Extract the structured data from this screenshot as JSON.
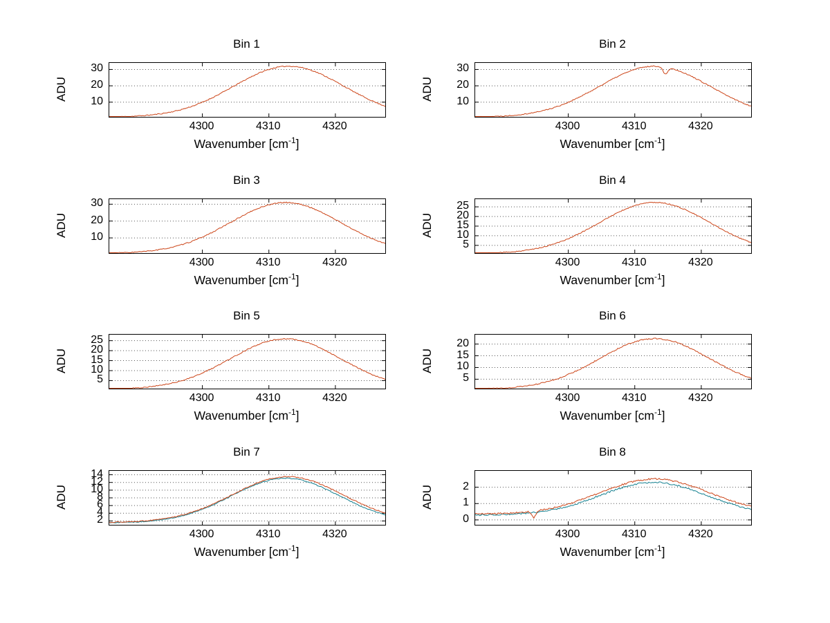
{
  "page": {
    "background": "#ffffff"
  },
  "chart_data": [
    {
      "type": "line",
      "title": "Bin 1",
      "xlabel": "Wavenumber [cm^{-1}]",
      "ylabel": "ADU",
      "xlim": [
        4286,
        4327.5
      ],
      "ylim": [
        1,
        34
      ],
      "xticks": [
        4300,
        4310,
        4320
      ],
      "yticks": [
        10,
        20,
        30
      ],
      "grid": "horizontal-dotted",
      "legend": "none",
      "series": [
        {
          "name": "spectrum",
          "color": "#cc4417",
          "base": 0.8,
          "amp": 31.2,
          "center": 4313,
          "sigma": 8.3,
          "noise": 0.3,
          "seed": 11,
          "dips": []
        }
      ]
    },
    {
      "type": "line",
      "title": "Bin 2",
      "xlabel": "Wavenumber [cm^{-1}]",
      "ylabel": "ADU",
      "xlim": [
        4286,
        4327.5
      ],
      "ylim": [
        1,
        34
      ],
      "xticks": [
        4300,
        4310,
        4320
      ],
      "yticks": [
        10,
        20,
        30
      ],
      "grid": "horizontal-dotted",
      "legend": "none",
      "series": [
        {
          "name": "spectrum",
          "color": "#cc4417",
          "base": 0.8,
          "amp": 31.2,
          "center": 4313,
          "sigma": 8.3,
          "noise": 0.3,
          "seed": 22,
          "dips": [
            {
              "x": 4314.6,
              "depth": 4.2,
              "width": 0.35
            }
          ]
        }
      ]
    },
    {
      "type": "line",
      "title": "Bin 3",
      "xlabel": "Wavenumber [cm^{-1}]",
      "ylabel": "ADU",
      "xlim": [
        4286,
        4327.5
      ],
      "ylim": [
        1,
        33
      ],
      "xticks": [
        4300,
        4310,
        4320
      ],
      "yticks": [
        10,
        20,
        30
      ],
      "grid": "horizontal-dotted",
      "legend": "none",
      "series": [
        {
          "name": "spectrum",
          "color": "#cc4417",
          "base": 0.8,
          "amp": 30.2,
          "center": 4312.5,
          "sigma": 8.3,
          "noise": 0.3,
          "seed": 33,
          "dips": []
        }
      ]
    },
    {
      "type": "line",
      "title": "Bin 4",
      "xlabel": "Wavenumber [cm^{-1}]",
      "ylabel": "ADU",
      "xlim": [
        4286,
        4327.5
      ],
      "ylim": [
        1,
        29
      ],
      "xticks": [
        4300,
        4310,
        4320
      ],
      "yticks": [
        5,
        10,
        15,
        20,
        25
      ],
      "grid": "horizontal-dotted",
      "legend": "none",
      "series": [
        {
          "name": "spectrum",
          "color": "#cc4417",
          "base": 0.7,
          "amp": 26.6,
          "center": 4313,
          "sigma": 8.3,
          "noise": 0.25,
          "seed": 44,
          "dips": []
        }
      ]
    },
    {
      "type": "line",
      "title": "Bin 5",
      "xlabel": "Wavenumber [cm^{-1}]",
      "ylabel": "ADU",
      "xlim": [
        4286,
        4327.5
      ],
      "ylim": [
        1,
        28
      ],
      "xticks": [
        4300,
        4310,
        4320
      ],
      "yticks": [
        5,
        10,
        15,
        20,
        25
      ],
      "grid": "horizontal-dotted",
      "legend": "none",
      "series": [
        {
          "name": "spectrum",
          "color": "#cc4417",
          "base": 0.7,
          "amp": 25.2,
          "center": 4312.5,
          "sigma": 8.3,
          "noise": 0.25,
          "seed": 55,
          "dips": []
        }
      ]
    },
    {
      "type": "line",
      "title": "Bin 6",
      "xlabel": "Wavenumber [cm^{-1}]",
      "ylabel": "ADU",
      "xlim": [
        4286,
        4327.5
      ],
      "ylim": [
        1,
        24
      ],
      "xticks": [
        4300,
        4310,
        4320
      ],
      "yticks": [
        5,
        10,
        15,
        20
      ],
      "grid": "horizontal-dotted",
      "legend": "none",
      "series": [
        {
          "name": "spectrum",
          "color": "#cc4417",
          "base": 0.7,
          "amp": 21.6,
          "center": 4313,
          "sigma": 8.3,
          "noise": 0.25,
          "seed": 66,
          "dips": []
        }
      ]
    },
    {
      "type": "line",
      "title": "Bin 7",
      "xlabel": "Wavenumber [cm^{-1}]",
      "ylabel": "ADU",
      "xlim": [
        4286,
        4327.5
      ],
      "ylim": [
        1,
        15
      ],
      "xticks": [
        4300,
        4310,
        4320
      ],
      "yticks": [
        2,
        4,
        6,
        8,
        10,
        12,
        14
      ],
      "grid": "horizontal-dotted",
      "legend": "none",
      "series": [
        {
          "name": "spectrum-b",
          "color": "#127f8f",
          "base": 1.5,
          "amp": 11.6,
          "center": 4312.5,
          "sigma": 8.1,
          "noise": 0.12,
          "seed": 71,
          "dips": []
        },
        {
          "name": "spectrum-r",
          "color": "#cc4417",
          "base": 1.6,
          "amp": 11.9,
          "center": 4312.8,
          "sigma": 8.3,
          "noise": 0.12,
          "seed": 72,
          "dips": []
        }
      ]
    },
    {
      "type": "line",
      "title": "Bin 8",
      "xlabel": "Wavenumber [cm^{-1}]",
      "ylabel": "ADU",
      "xlim": [
        4286,
        4327.5
      ],
      "ylim": [
        -0.3,
        3.0
      ],
      "xticks": [
        4300,
        4310,
        4320
      ],
      "yticks": [
        0,
        1,
        2
      ],
      "grid": "horizontal-dotted",
      "legend": "none",
      "series": [
        {
          "name": "spectrum-b",
          "color": "#127f8f",
          "base": 0.3,
          "amp": 2.0,
          "center": 4312.8,
          "sigma": 7.9,
          "noise": 0.045,
          "seed": 81,
          "dips": []
        },
        {
          "name": "spectrum-r",
          "color": "#cc4417",
          "base": 0.35,
          "amp": 2.15,
          "center": 4313,
          "sigma": 8.3,
          "noise": 0.05,
          "seed": 82,
          "dips": [
            {
              "x": 4294.8,
              "depth": 0.4,
              "width": 0.3
            }
          ]
        }
      ]
    }
  ]
}
